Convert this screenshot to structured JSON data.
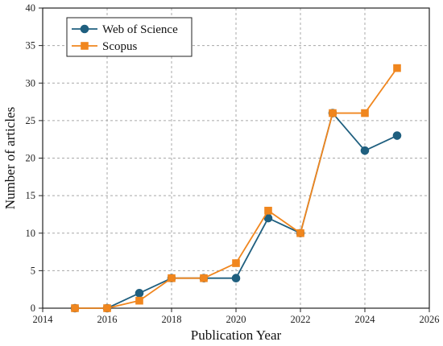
{
  "chart_data": {
    "type": "line",
    "xlabel": "Publication Year",
    "ylabel": "Number of articles",
    "xlim": [
      2014,
      2026
    ],
    "ylim": [
      0,
      40
    ],
    "x_ticks": [
      2014,
      2016,
      2018,
      2020,
      2022,
      2024,
      2026
    ],
    "y_ticks": [
      0,
      5,
      10,
      15,
      20,
      25,
      30,
      35,
      40
    ],
    "x_tick_labels": [
      "2014",
      "2016",
      "2018",
      "2020",
      "2022",
      "2024",
      "2026"
    ],
    "y_tick_labels": [
      "0",
      "5",
      "10",
      "15",
      "20",
      "25",
      "30",
      "35",
      "40"
    ],
    "grid": true,
    "grid_style": "dashed",
    "legend_position": "top-left",
    "x": [
      2015,
      2016,
      2017,
      2018,
      2019,
      2020,
      2021,
      2022,
      2023,
      2024,
      2025
    ],
    "series": [
      {
        "name": "Web of Science",
        "marker": "circle",
        "color": "#1f5f7f",
        "values": [
          0,
          0,
          2,
          4,
          4,
          4,
          12,
          10,
          26,
          21,
          23
        ]
      },
      {
        "name": "Scopus",
        "marker": "square",
        "color": "#f0861e",
        "values": [
          0,
          0,
          1,
          4,
          4,
          6,
          13,
          10,
          26,
          26,
          32
        ]
      }
    ]
  }
}
